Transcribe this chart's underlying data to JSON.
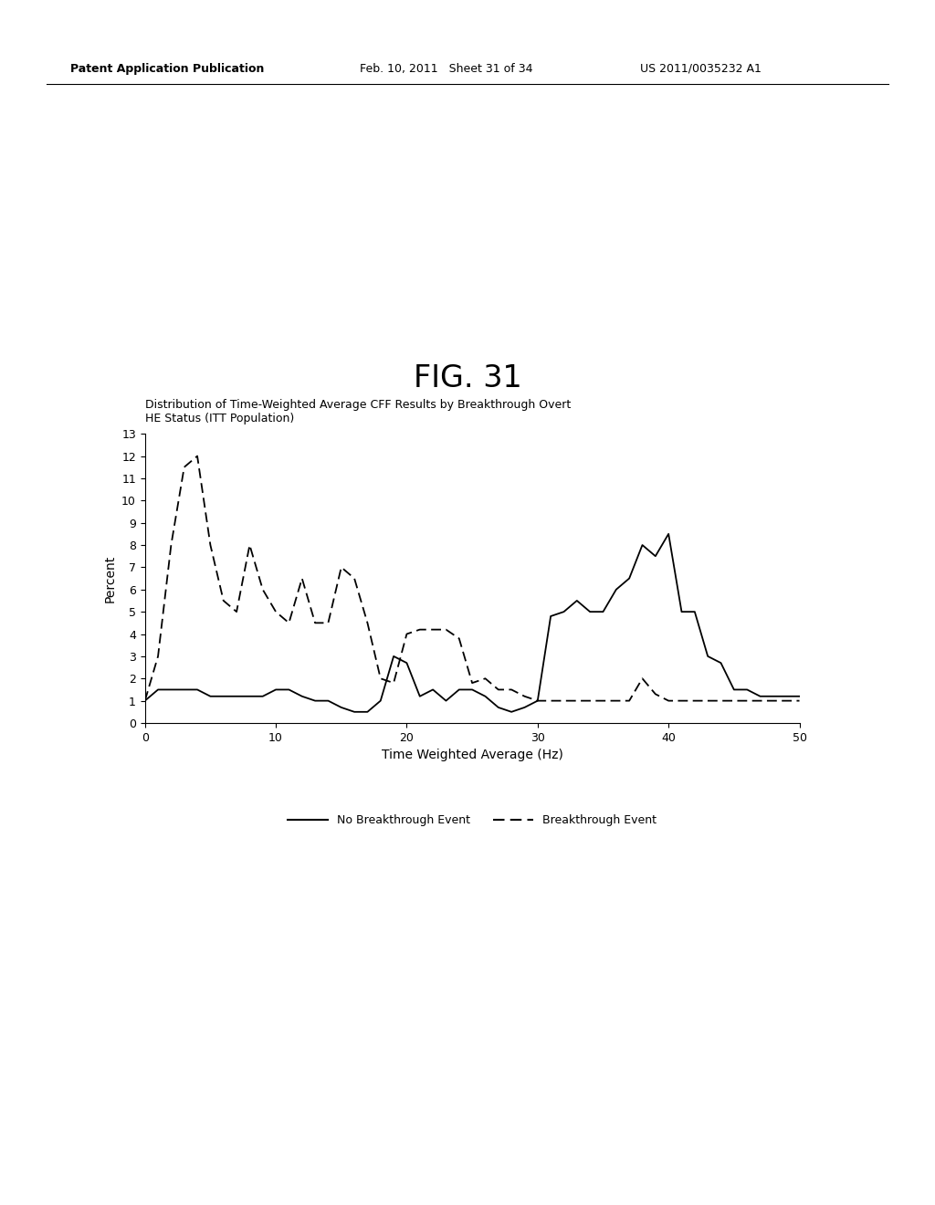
{
  "fig_label": "FIG. 31",
  "chart_title_line1": "Distribution of Time-Weighted Average CFF Results by Breakthrough Overt",
  "chart_title_line2": "HE Status (ITT Population)",
  "xlabel": "Time Weighted Average (Hz)",
  "ylabel": "Percent",
  "header_left": "Patent Application Publication",
  "header_mid": "Feb. 10, 2011   Sheet 31 of 34",
  "header_right": "US 2011/0035232 A1",
  "xlim": [
    0,
    50
  ],
  "ylim": [
    0,
    13
  ],
  "yticks": [
    0,
    1,
    2,
    3,
    4,
    5,
    6,
    7,
    8,
    9,
    10,
    11,
    12,
    13
  ],
  "xticks": [
    0,
    10,
    20,
    30,
    40,
    50
  ],
  "solid_x": [
    0,
    1,
    2,
    3,
    4,
    5,
    6,
    7,
    8,
    9,
    10,
    11,
    12,
    13,
    14,
    15,
    16,
    17,
    18,
    19,
    20,
    21,
    22,
    23,
    24,
    25,
    26,
    27,
    28,
    29,
    30,
    31,
    32,
    33,
    34,
    35,
    36,
    37,
    38,
    39,
    40,
    41,
    42,
    43,
    44,
    45,
    46,
    47,
    48,
    49,
    50
  ],
  "solid_y": [
    1.0,
    1.5,
    1.5,
    1.5,
    1.5,
    1.2,
    1.2,
    1.2,
    1.2,
    1.2,
    1.5,
    1.5,
    1.2,
    1.0,
    1.0,
    0.7,
    0.5,
    0.5,
    1.0,
    3.0,
    2.7,
    1.2,
    1.5,
    1.0,
    1.5,
    1.5,
    1.2,
    0.7,
    0.5,
    0.7,
    1.0,
    4.8,
    5.0,
    5.5,
    5.0,
    5.0,
    6.0,
    6.5,
    8.0,
    7.5,
    8.5,
    5.0,
    5.0,
    3.0,
    2.7,
    1.5,
    1.5,
    1.2,
    1.2,
    1.2,
    1.2
  ],
  "dashed_x": [
    0,
    1,
    2,
    3,
    4,
    5,
    6,
    7,
    8,
    9,
    10,
    11,
    12,
    13,
    14,
    15,
    16,
    17,
    18,
    19,
    20,
    21,
    22,
    23,
    24,
    25,
    26,
    27,
    28,
    29,
    30,
    31,
    32,
    33,
    34,
    35,
    36,
    37,
    38,
    39,
    40,
    41,
    42,
    43,
    44,
    45,
    46,
    47,
    48,
    49,
    50
  ],
  "dashed_y": [
    1.0,
    3.0,
    8.0,
    11.5,
    12.0,
    8.0,
    5.5,
    5.0,
    8.0,
    6.0,
    5.0,
    4.5,
    6.5,
    4.5,
    4.5,
    7.0,
    6.5,
    4.5,
    2.0,
    1.8,
    4.0,
    4.2,
    4.2,
    4.2,
    3.8,
    1.8,
    2.0,
    1.5,
    1.5,
    1.2,
    1.0,
    1.0,
    1.0,
    1.0,
    1.0,
    1.0,
    1.0,
    1.0,
    2.0,
    1.3,
    1.0,
    1.0,
    1.0,
    1.0,
    1.0,
    1.0,
    1.0,
    1.0,
    1.0,
    1.0,
    1.0
  ],
  "legend_solid_label": "No Breakthrough Event",
  "legend_dashed_label": "Breakthrough Event",
  "background_color": "#ffffff",
  "line_color": "#000000",
  "fig_label_fontsize": 24,
  "chart_title_fontsize": 9,
  "header_fontsize": 9,
  "axis_label_fontsize": 10,
  "tick_fontsize": 9,
  "legend_fontsize": 9
}
